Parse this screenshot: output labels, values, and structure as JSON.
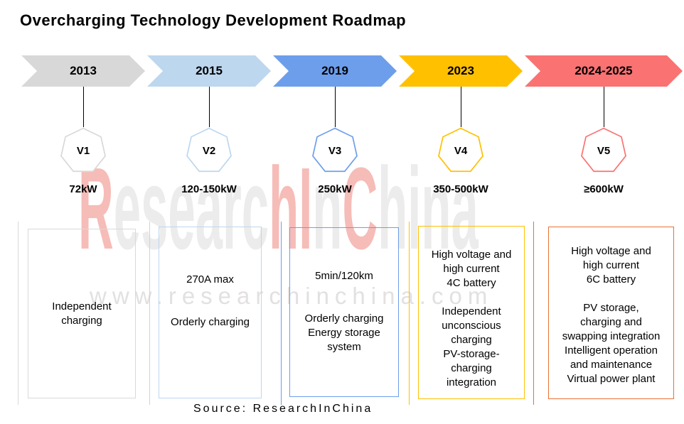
{
  "title": "Overcharging Technology Development Roadmap",
  "source": "Source: ResearchInChina",
  "watermark": {
    "url": "www.researchinchina.com",
    "url_color": "#e3e0e0",
    "red": "#f6bcb8",
    "gray": "#ececec",
    "letters": [
      {
        "ch": "R",
        "color": "#f6bcb8"
      },
      {
        "ch": "e",
        "color": "#ececec"
      },
      {
        "ch": "s",
        "color": "#ececec"
      },
      {
        "ch": "e",
        "color": "#ececec"
      },
      {
        "ch": "a",
        "color": "#ececec"
      },
      {
        "ch": "r",
        "color": "#ececec"
      },
      {
        "ch": "c",
        "color": "#ececec"
      },
      {
        "ch": "h",
        "color": "#f6bcb8"
      },
      {
        "ch": "I",
        "color": "#f6bcb8"
      },
      {
        "ch": "n",
        "color": "#ececec"
      },
      {
        "ch": "C",
        "color": "#f6bcb8"
      },
      {
        "ch": "h",
        "color": "#ececec"
      },
      {
        "ch": "i",
        "color": "#ececec"
      },
      {
        "ch": "n",
        "color": "#ececec"
      },
      {
        "ch": "a",
        "color": "#ececec"
      }
    ]
  },
  "stages": [
    {
      "year": "2013",
      "version": "V1",
      "power": "72kW",
      "color": "#D8D8D8",
      "box_color": "#D9D9D9",
      "details": "Independent\ncharging"
    },
    {
      "year": "2015",
      "version": "V2",
      "power": "120-150kW",
      "color": "#BDD7EE",
      "box_color": "#BDD7EE",
      "details": "270A max\n\n\nOrderly charging"
    },
    {
      "year": "2019",
      "version": "V3",
      "power": "250kW",
      "color": "#6D9EEB",
      "box_color": "#6D9EEB",
      "details": "5min/120km\n\n\nOrderly charging\nEnergy storage\nsystem"
    },
    {
      "year": "2023",
      "version": "V4",
      "power": "350-500kW",
      "color": "#FFC000",
      "box_color": "#FFC000",
      "details": "High voltage and\nhigh current\n4C battery\n\nIndependent\nunconscious\ncharging\nPV-storage-\ncharging\nintegration"
    },
    {
      "year": "2024-2025",
      "version": "V5",
      "power": "≥600kW",
      "color": "#FA7272",
      "box_color": "#E97132",
      "details": "High voltage and\nhigh current\n6C battery\n\nPV storage,\ncharging and\nswapping integration\nIntelligent operation\nand maintenance\nVirtual power plant"
    }
  ]
}
